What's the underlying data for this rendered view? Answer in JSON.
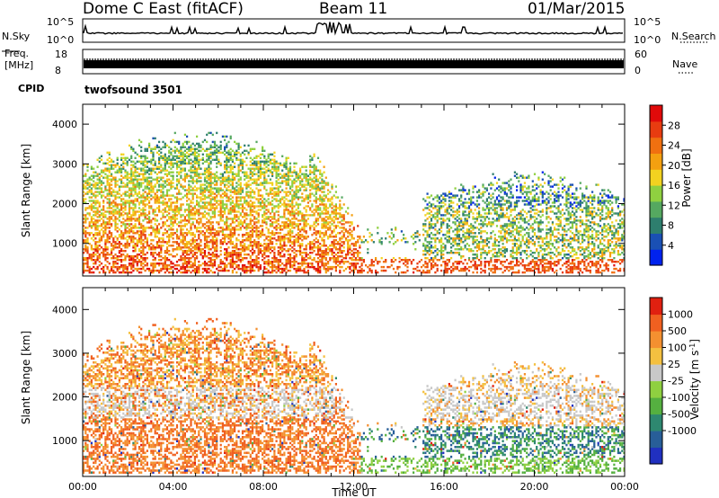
{
  "header": {
    "station": "Dome C East (fitACF)",
    "beam": "Beam 11",
    "date": "01/Mar/2015"
  },
  "strip_labels": {
    "nsky": "N.Sky",
    "nsky_top": "10^5",
    "nsky_bottom": "10^0",
    "nsearch": "N.Search",
    "nsearch_top": "10^5",
    "nsearch_bottom": "10^0",
    "freq_line1": "Freq.",
    "freq_line2": "[MHz]",
    "freq_top": "18",
    "freq_bottom": "8",
    "nave": "Nave",
    "nave_top": "60",
    "nave_bottom": "0",
    "cpid": "CPID",
    "cpid_value": "twofsound 3501"
  },
  "colors": {
    "power_scale": [
      "#0022ee",
      "#1a50b4",
      "#2e7e6e",
      "#55a860",
      "#8fd040",
      "#f2d220",
      "#f4a010",
      "#f07010",
      "#e83c10",
      "#e00a0a"
    ],
    "velocity_scale": [
      "#2030c0",
      "#285e98",
      "#2e8870",
      "#55b040",
      "#8fd040",
      "#c8c8c8",
      "#f4c040",
      "#f49030",
      "#f06020",
      "#e02010"
    ]
  },
  "chart_data": [
    {
      "type": "heatmap",
      "panel": "power",
      "xlabel": "",
      "ylabel": "Slant Range [km]",
      "ylim": [
        180,
        4500
      ],
      "y_ticks": [
        "1000",
        "2000",
        "3000",
        "4000"
      ],
      "colorbar_label": "Power [dB]",
      "colorbar_ticks": [
        "4",
        "8",
        "12",
        "16",
        "20",
        "24",
        "28"
      ],
      "colorbar_range": [
        0,
        32
      ]
    },
    {
      "type": "heatmap",
      "panel": "velocity",
      "xlabel": "Time UT",
      "ylabel": "Slant Range [km]",
      "ylim": [
        180,
        4500
      ],
      "x_ticks": [
        "00:00",
        "04:00",
        "08:00",
        "12:00",
        "16:00",
        "20:00",
        "00:00"
      ],
      "y_ticks": [
        "1000",
        "2000",
        "3000",
        "4000"
      ],
      "colorbar_label": "Velocity [m s^-1]",
      "colorbar_ticks": [
        "1000",
        "500",
        "100",
        "25",
        "-25",
        "-100",
        "-500",
        "-1000"
      ]
    }
  ]
}
